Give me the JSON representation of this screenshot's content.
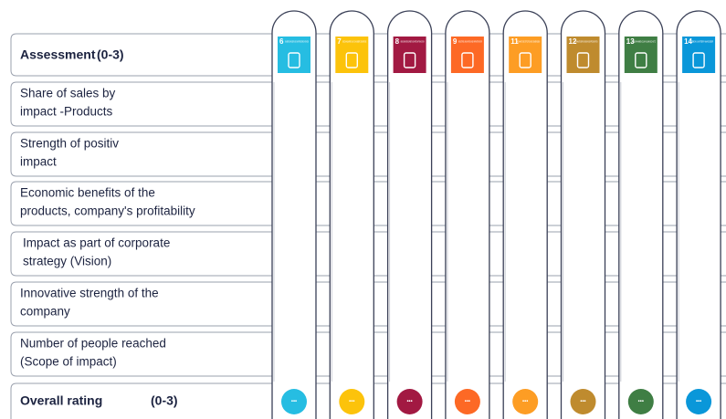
{
  "header": {
    "title": "Assessment",
    "scale": "(0-3)"
  },
  "rows": [
    {
      "lines": [
        "Share of sales by",
        "impact  -Products"
      ]
    },
    {
      "lines": [
        "Strength of positiv",
        "impact"
      ]
    },
    {
      "lines": [
        "Economic benefits of the",
        "products, company's profitability"
      ]
    },
    {
      "lines": [
        "Impact as part of corporate",
        "strategy (Vision)"
      ]
    },
    {
      "lines": [
        "Innovative strength of the",
        "company"
      ]
    },
    {
      "lines": [
        "Number of people reached",
        "(Scope of impact)"
      ]
    }
  ],
  "footer": {
    "title": "Overall rating",
    "scale": "(0-3)"
  },
  "goals": [
    {
      "number": "6",
      "label": "SAUBERES WASSER UND SANITÄRE EINRICHTUNGEN",
      "color": "#26bde2",
      "rating": "•••"
    },
    {
      "number": "7",
      "label": "BEZAHLBARE UND SAUBERE ENERGIE",
      "color": "#fcc30b",
      "rating": "•••"
    },
    {
      "number": "8",
      "label": "MENSCHENWÜRDIGE ARBEIT UND WIRTSCHAFTSWACHSTUM",
      "color": "#a21942",
      "rating": "•••"
    },
    {
      "number": "9",
      "label": "INDUSTRIE, INNOVATION UND INFRASTRUKTUR",
      "color": "#fd6925",
      "rating": "•••"
    },
    {
      "number": "11",
      "label": "NACHHALTIGE STÄDTE UND GEMEINDEN",
      "color": "#fd9d24",
      "rating": "•••"
    },
    {
      "number": "12",
      "label": "NACHHALTIGE/R KONSUM UND PRODUKTION",
      "color": "#bf8b2e",
      "rating": "•••"
    },
    {
      "number": "13",
      "label": "MASSNAHMEN ZUM KLIMASCHUTZ",
      "color": "#3f7e44",
      "rating": "•••"
    },
    {
      "number": "14",
      "label": "LEBEN UNTER WASSER",
      "color": "#0a97d9",
      "rating": "•••"
    }
  ]
}
